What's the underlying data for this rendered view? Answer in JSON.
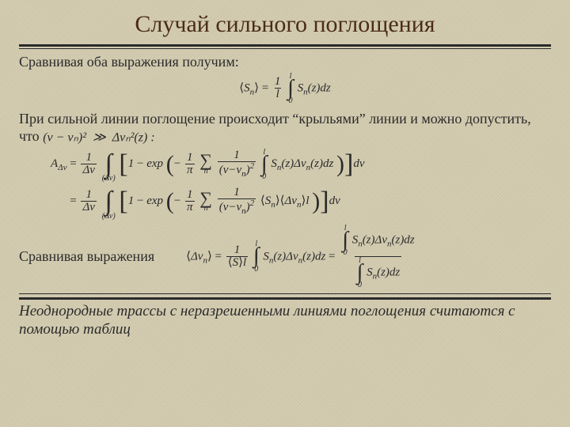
{
  "colors": {
    "background": "#d4cdb2",
    "title": "#4a2c1a",
    "text": "#2a2a2a",
    "rule": "#2a2a2a"
  },
  "typography": {
    "title_fontsize_pt": 30,
    "body_fontsize_pt": 18,
    "eq_fontsize_pt": 15,
    "conclusion_fontsize_pt": 19,
    "font_family": "Times New Roman"
  },
  "title": "Случай сильного поглощения",
  "line1": "Сравнивая оба выражения получим:",
  "line2_a": "При сильной линии поглощение происходит “крыльями” линии и можно допустить, что",
  "line2_inline_math": "(ν − νₙ)²  ≫  Δνₙ²(z) :",
  "eq1": {
    "lhs": "⟨Sₙ⟩",
    "rhs_text": "(1/l) ∫₀ˡ Sₙ(z) dz"
  },
  "eq2": {
    "lhs": "A_{Δν}",
    "line1_text": "(1/Δν) ∫_{(Δν)} [1 − exp(−(1/π) Σₙ 1/(ν−νₙ)² ∫₀ˡ Sₙ(z)Δνₙ(z)dz)] dν",
    "line2_text": "(1/Δν) ∫_{(Δν)} [1 − exp(−(1/π) Σₙ 1/(ν−νₙ)² ⟨Sₙ⟩⟨Δνₙ⟩ l)] dν"
  },
  "line3": "Сравнивая выражения",
  "eq3": {
    "lhs": "⟨Δνₙ⟩",
    "mid_text": "(1/(⟨S⟩l)) ∫₀ˡ Sₙ(z)Δνₙ(z)dz",
    "rhs_text": "[∫₀ˡ Sₙ(z)Δνₙ(z)dz] / [∫₀ˡ Sₙ(z)dz]"
  },
  "conclusion": "Неоднородные трассы с неразрешенными линиями поглощения считаются с помощью таблиц"
}
